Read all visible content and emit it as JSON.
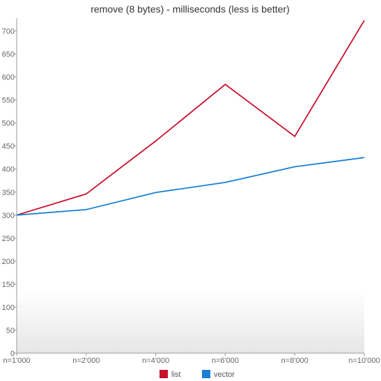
{
  "chart_data": {
    "type": "line",
    "title": "remove (8 bytes) - milliseconds (less is better)",
    "categories": [
      "n=1'000",
      "n=2'000",
      "n=4'000",
      "n=6'000",
      "n=8'000",
      "n=10'000"
    ],
    "ylim": [
      0,
      725
    ],
    "yticks": [
      0,
      50,
      100,
      150,
      200,
      250,
      300,
      350,
      400,
      450,
      500,
      550,
      600,
      650,
      700
    ],
    "grid": false,
    "legend_position": "bottom",
    "series": [
      {
        "name": "list",
        "color": "#c8102e",
        "values": [
          300,
          346,
          461,
          584,
          471,
          723
        ]
      },
      {
        "name": "vector",
        "color": "#1a7fd4",
        "values": [
          300,
          312,
          349,
          371,
          405,
          425
        ]
      }
    ]
  }
}
